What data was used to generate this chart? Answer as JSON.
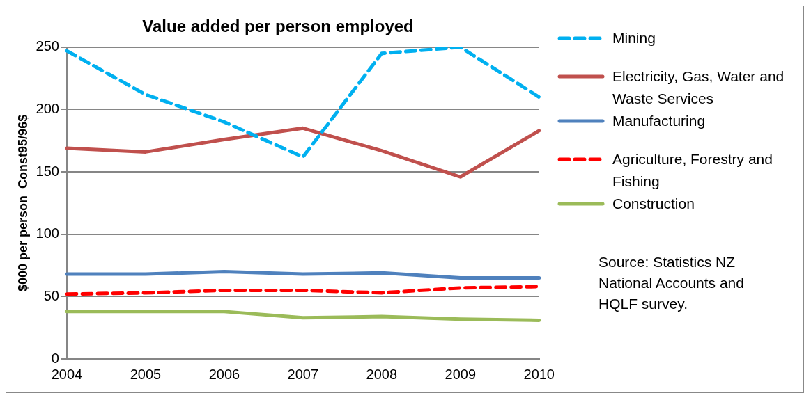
{
  "chart_data": {
    "type": "line",
    "title": "Value added per person employed",
    "ylabel": "$000 per person  Const95/96$",
    "categories": [
      "2004",
      "2005",
      "2006",
      "2007",
      "2008",
      "2009",
      "2010"
    ],
    "series": [
      {
        "name": "Mining",
        "color": "#00b0f0",
        "line_style": "dashed",
        "values": [
          247,
          212,
          190,
          162,
          245,
          250,
          210
        ]
      },
      {
        "name": "Electricity, Gas, Water and Waste Services",
        "color": "#c0504d",
        "line_style": "solid",
        "values": [
          169,
          166,
          176,
          185,
          167,
          146,
          183
        ]
      },
      {
        "name": "Manufacturing",
        "color": "#4f81bd",
        "line_style": "solid",
        "values": [
          68,
          68,
          70,
          68,
          69,
          65,
          65
        ]
      },
      {
        "name": "Agriculture, Forestry and Fishing",
        "color": "#ff0000",
        "line_style": "dashed",
        "values": [
          52,
          53,
          55,
          55,
          53,
          57,
          58
        ]
      },
      {
        "name": "Construction",
        "color": "#9bbb59",
        "line_style": "solid",
        "values": [
          38,
          38,
          38,
          33,
          34,
          32,
          31
        ]
      }
    ],
    "ylim": [
      0,
      250
    ],
    "yticks": [
      0,
      50,
      100,
      150,
      200,
      250
    ],
    "grid": "y",
    "legend": "right",
    "marker": "none",
    "annotations": [
      "Source: Statistics NZ National Accounts and HQLF survey."
    ]
  }
}
